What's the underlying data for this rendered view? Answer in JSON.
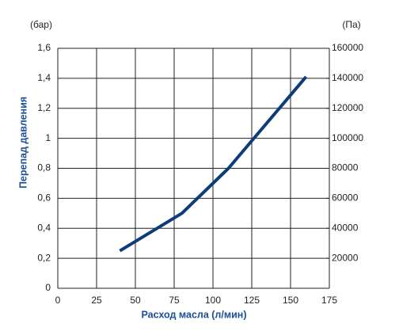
{
  "chart_data": {
    "type": "line",
    "y_unit": "(бар)",
    "y2_unit": "(Па)",
    "ylabel": "Перепад давления",
    "xlabel": "Расход масла (л/мин)",
    "x": [
      40,
      80,
      110,
      160
    ],
    "values": [
      0.25,
      0.5,
      0.8,
      1.41
    ],
    "color": "#0d3c7a",
    "xlim": [
      0,
      175
    ],
    "xticks": [
      0,
      25,
      50,
      75,
      100,
      125,
      150,
      175
    ],
    "ylim": [
      0,
      1.6
    ],
    "yticks": [
      0,
      {
        "value": 0.2,
        "label": "0,2"
      },
      {
        "value": 0.4,
        "label": "0,4"
      },
      {
        "value": 0.6,
        "label": "0,6"
      },
      {
        "value": 0.8,
        "label": "0,8"
      },
      1,
      {
        "value": 1.2,
        "label": "1,2"
      },
      {
        "value": 1.4,
        "label": "1,4"
      },
      {
        "value": 1.6,
        "label": "1,6"
      }
    ],
    "y2lim": [
      0,
      160000
    ],
    "y2ticks": [
      20000,
      40000,
      60000,
      80000,
      100000,
      120000,
      140000,
      160000
    ],
    "grid": true
  }
}
